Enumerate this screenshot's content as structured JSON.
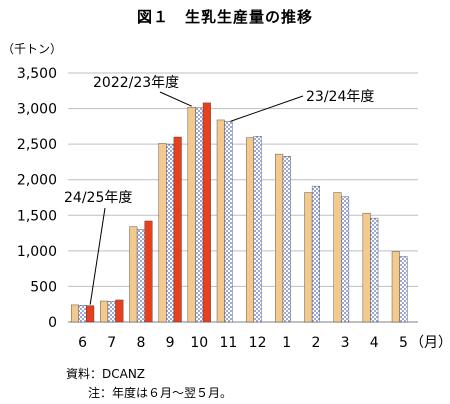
{
  "title": "図１　生乳生産量の推移",
  "unit_label": "（千トン）",
  "x_unit_label": "（月）",
  "source": "資料：DCANZ",
  "note": "注：年度は６月～翌５月。",
  "colors": {
    "fy2022_23": "#f3c98e",
    "fy2023_24": "#b9c6ec",
    "fy2024_25": "#e8401c",
    "gridline": "#bfbfbf",
    "bar_outline": "#3a3a3a"
  },
  "chart_data": {
    "type": "bar",
    "title": "図１　生乳生産量の推移",
    "ylabel": "（千トン）",
    "xlabel": "（月）",
    "ylim": [
      0,
      3500
    ],
    "yticks": [
      0,
      500,
      1000,
      1500,
      2000,
      2500,
      3000,
      3500
    ],
    "ytick_labels": [
      "0",
      "500",
      "1,000",
      "1,500",
      "2,000",
      "2,500",
      "3,000",
      "3,500"
    ],
    "grid": true,
    "categories": [
      "6",
      "7",
      "8",
      "9",
      "10",
      "11",
      "12",
      "1",
      "2",
      "3",
      "4",
      "5"
    ],
    "series": [
      {
        "name": "2022/23年度",
        "values": [
          240,
          295,
          1340,
          2510,
          3020,
          2840,
          2590,
          2360,
          1820,
          1820,
          1530,
          990
        ]
      },
      {
        "name": "23/24年度",
        "values": [
          235,
          290,
          1300,
          2500,
          3010,
          2820,
          2610,
          2330,
          1910,
          1760,
          1460,
          920
        ]
      },
      {
        "name": "24/25年度",
        "values": [
          230,
          310,
          1420,
          2600,
          3080,
          null,
          null,
          null,
          null,
          null,
          null,
          null
        ]
      }
    ]
  }
}
